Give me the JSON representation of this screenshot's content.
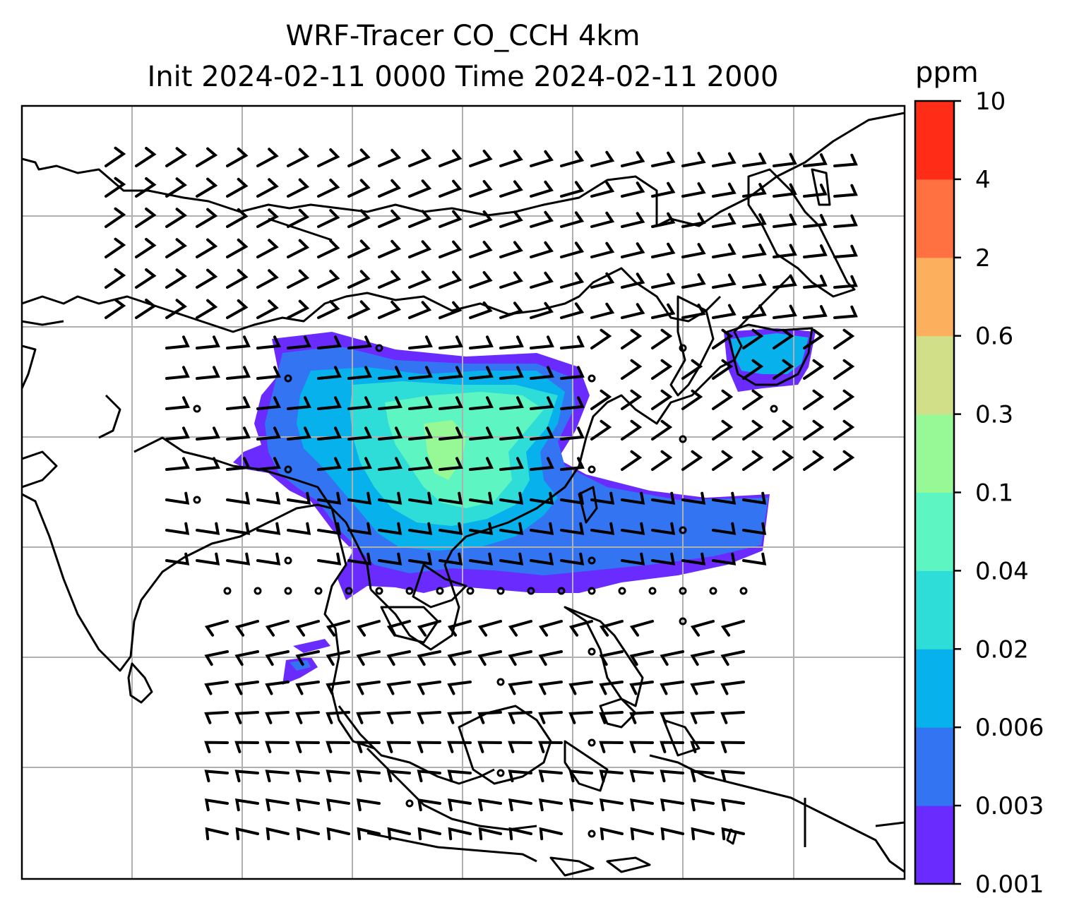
{
  "title": {
    "line1": "WRF-Tracer CO_CCH 4km",
    "line2": "Init 2024-02-11 0000 Time 2024-02-11 2000"
  },
  "colorbar": {
    "unit": "ppm",
    "levels": [
      "0.001",
      "0.003",
      "0.006",
      "0.02",
      "0.04",
      "0.1",
      "0.3",
      "0.6",
      "2",
      "4",
      "10"
    ],
    "colors": [
      "#6a2bff",
      "#3374f2",
      "#07b1ec",
      "#2edcd8",
      "#5df5c2",
      "#96f995",
      "#d1df88",
      "#fcb05e",
      "#ff7140",
      "#ff2d17"
    ]
  },
  "map": {
    "gridlines": true,
    "coastline_color": "#000000",
    "barb_color": "#000000"
  }
}
